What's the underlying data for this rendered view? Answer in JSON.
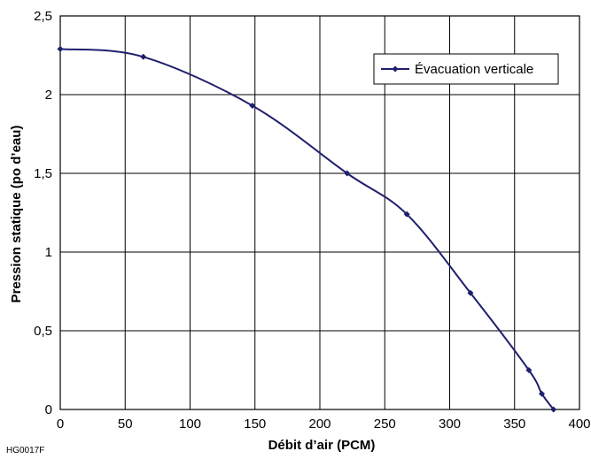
{
  "chart_data": {
    "type": "line",
    "xlabel": "Débit d’air (PCM)",
    "ylabel": "Pression statique (po d’eau)",
    "xlim": [
      0,
      400
    ],
    "ylim": [
      0,
      2.5
    ],
    "x_ticks": [
      "0",
      "50",
      "100",
      "150",
      "200",
      "250",
      "300",
      "350",
      "400"
    ],
    "y_ticks": [
      "0",
      "0,5",
      "1",
      "1,5",
      "2",
      "2,5"
    ],
    "grid": true,
    "legend_position": "top-right",
    "series": [
      {
        "name": "Évacuation verticale",
        "color": "#1f1f6e",
        "marker": "diamond",
        "smooth": true,
        "x": [
          0,
          64,
          148,
          221,
          267,
          316,
          361,
          371,
          380
        ],
        "y": [
          2.29,
          2.24,
          1.93,
          1.5,
          1.24,
          0.74,
          0.25,
          0.1,
          0.0
        ]
      }
    ]
  },
  "figure_code": "HG0017F"
}
